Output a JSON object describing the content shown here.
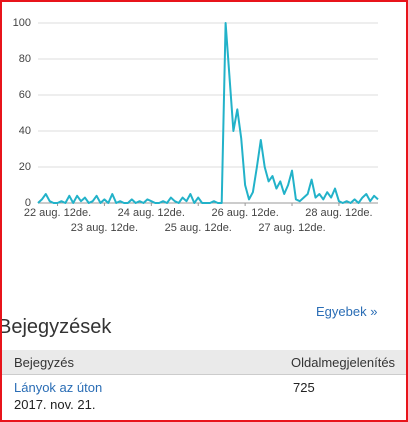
{
  "chart_data": {
    "type": "line",
    "color": "#22b2c9",
    "grid": true,
    "x": [
      2,
      4,
      6,
      8,
      10,
      12,
      14,
      16,
      18,
      20,
      22,
      24,
      26,
      28,
      30,
      32,
      34,
      36,
      38,
      40,
      42,
      44,
      46,
      48,
      50,
      52,
      54,
      56,
      58,
      60,
      62,
      64,
      66,
      68,
      70,
      72,
      74,
      76,
      78,
      80,
      82,
      84,
      86,
      88,
      90,
      92,
      94,
      96,
      98,
      100,
      102,
      104,
      106,
      108,
      110,
      112,
      114,
      116,
      118,
      120,
      122,
      124,
      126,
      128,
      130,
      132,
      134,
      136,
      138,
      140,
      142,
      144,
      146,
      148,
      150,
      152,
      154,
      156,
      158,
      160,
      162,
      164,
      166,
      168,
      170,
      172,
      174,
      176
    ],
    "values": [
      0,
      2,
      5,
      1,
      0,
      0,
      1,
      0,
      4,
      0,
      4,
      1,
      3,
      0,
      1,
      4,
      0,
      2,
      0,
      5,
      0,
      1,
      0,
      0,
      2,
      0,
      1,
      0,
      2,
      1,
      0,
      0,
      1,
      0,
      3,
      1,
      0,
      3,
      1,
      5,
      0,
      3,
      0,
      0,
      0,
      1,
      0,
      0,
      100,
      70,
      40,
      52,
      36,
      10,
      2,
      6,
      20,
      35,
      20,
      12,
      15,
      8,
      12,
      5,
      10,
      18,
      2,
      1,
      3,
      5,
      13,
      3,
      5,
      2,
      6,
      3,
      8,
      1,
      0,
      1,
      0,
      2,
      0,
      3,
      5,
      1,
      4,
      2
    ],
    "xlim": [
      2,
      176
    ],
    "xticks": [
      {
        "value": 12,
        "label": "22 aug. 12de."
      },
      {
        "value": 36,
        "label": "23 aug. 12de."
      },
      {
        "value": 60,
        "label": "24 aug. 12de."
      },
      {
        "value": 84,
        "label": "25 aug. 12de."
      },
      {
        "value": 108,
        "label": "26 aug. 12de."
      },
      {
        "value": 132,
        "label": "27 aug. 12de."
      },
      {
        "value": 156,
        "label": "28 aug. 12de."
      }
    ],
    "ylim": [
      0,
      100
    ],
    "yticks": [
      0,
      20,
      40,
      60,
      80,
      100
    ]
  },
  "more_link": "Egyebek »",
  "posts": {
    "title": "Bejegyzések",
    "columns": [
      "Bejegyzés",
      "Oldalmegjelenítés"
    ],
    "rows": [
      {
        "title": "Lányok az úton",
        "date": "2017. nov. 21.",
        "views": 725
      }
    ]
  }
}
